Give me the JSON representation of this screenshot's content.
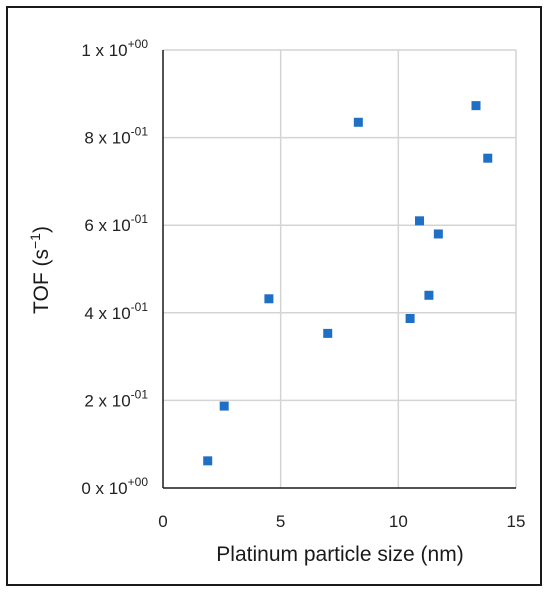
{
  "chart_data": {
    "type": "scatter",
    "title": "",
    "xlabel": "Platinum particle size (nm)",
    "ylabel_main": "TOF (s",
    "ylabel_sup": "−1",
    "ylabel_close": ")",
    "xlim": [
      0,
      15
    ],
    "ylim": [
      0,
      1
    ],
    "grid": true,
    "legend": "none",
    "marker_color": "#1f6fc5",
    "x_ticks": [
      {
        "value": 0,
        "label": "0"
      },
      {
        "value": 5,
        "label": "5"
      },
      {
        "value": 10,
        "label": "10"
      },
      {
        "value": 15,
        "label": "15"
      }
    ],
    "y_ticks": [
      {
        "value": 0,
        "label": "0 x 10",
        "exp": "+00"
      },
      {
        "value": 0.2,
        "label": "2 x 10",
        "exp": "-01"
      },
      {
        "value": 0.4,
        "label": "4 x 10",
        "exp": "-01"
      },
      {
        "value": 0.6,
        "label": "6 x 10",
        "exp": "-01"
      },
      {
        "value": 0.8,
        "label": "8 x 10",
        "exp": "-01"
      },
      {
        "value": 1.0,
        "label": "1 x 10",
        "exp": "+00"
      }
    ],
    "points": [
      {
        "x": 1.9,
        "y": 0.062
      },
      {
        "x": 2.6,
        "y": 0.187
      },
      {
        "x": 4.5,
        "y": 0.432
      },
      {
        "x": 7.0,
        "y": 0.353
      },
      {
        "x": 8.3,
        "y": 0.835
      },
      {
        "x": 10.5,
        "y": 0.387
      },
      {
        "x": 10.9,
        "y": 0.61
      },
      {
        "x": 11.3,
        "y": 0.44
      },
      {
        "x": 11.7,
        "y": 0.58
      },
      {
        "x": 13.3,
        "y": 0.873
      },
      {
        "x": 13.8,
        "y": 0.753
      }
    ]
  }
}
